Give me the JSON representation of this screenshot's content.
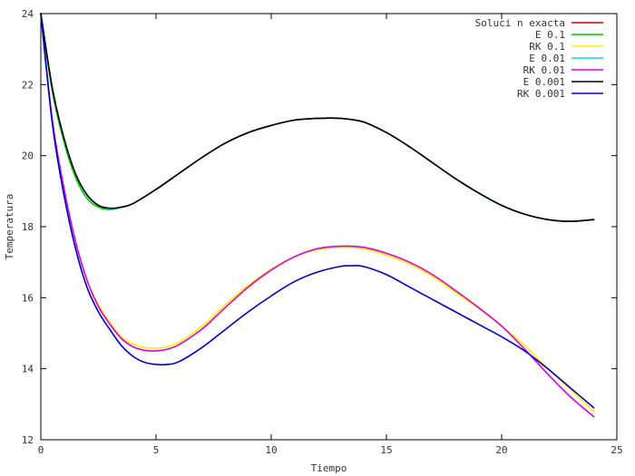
{
  "chart_data": {
    "type": "line",
    "title": "",
    "xlabel": "Tiempo",
    "ylabel": "Temperatura",
    "xlim": [
      0,
      25
    ],
    "ylim": [
      12,
      24
    ],
    "xticks": [
      0,
      5,
      10,
      15,
      20,
      25
    ],
    "yticks": [
      12,
      14,
      16,
      18,
      20,
      22,
      24
    ],
    "grid": false,
    "legend_position": "top-right",
    "series": [
      {
        "name": "Soluci n exacta",
        "color": "#cc0000",
        "x": [
          0,
          0.5,
          1,
          1.5,
          2,
          2.5,
          3,
          3.5,
          4,
          5,
          6,
          7,
          8,
          9,
          10,
          11,
          12,
          13,
          14,
          15,
          16,
          17,
          18,
          19,
          20,
          21,
          22,
          23,
          24
        ],
        "y": [
          24.0,
          21.9,
          20.5,
          19.5,
          18.9,
          18.6,
          18.5,
          18.55,
          18.65,
          19.05,
          19.5,
          19.95,
          20.35,
          20.65,
          20.85,
          21.0,
          21.05,
          21.05,
          20.95,
          20.65,
          20.25,
          19.8,
          19.35,
          18.95,
          18.6,
          18.35,
          18.2,
          18.15,
          18.2
        ]
      },
      {
        "name": "E 0.1",
        "color": "#00cc00",
        "x": [
          0,
          0.5,
          1,
          1.5,
          2,
          2.5,
          3,
          3.5,
          4,
          5,
          6,
          7,
          8,
          9,
          10,
          11,
          12,
          13,
          14,
          15,
          16,
          17,
          18,
          19,
          20,
          21,
          22,
          23,
          24
        ],
        "y": [
          24.0,
          21.8,
          20.4,
          19.4,
          18.8,
          18.55,
          18.48,
          18.55,
          18.65,
          19.05,
          19.5,
          19.95,
          20.35,
          20.65,
          20.85,
          21.0,
          21.05,
          21.05,
          20.95,
          20.65,
          20.25,
          19.8,
          19.35,
          18.95,
          18.6,
          18.35,
          18.2,
          18.15,
          18.2
        ]
      },
      {
        "name": "RK 0.1",
        "color": "#ffee00",
        "x": [
          0,
          0.5,
          1,
          1.5,
          2,
          2.5,
          3,
          3.5,
          4,
          4.5,
          5,
          5.5,
          6,
          7,
          8,
          9,
          10,
          11,
          12,
          13,
          14,
          15,
          16,
          17,
          18,
          19,
          20,
          21,
          22,
          23,
          24
        ],
        "y": [
          24.0,
          21.0,
          19.1,
          17.6,
          16.5,
          15.8,
          15.3,
          14.9,
          14.7,
          14.6,
          14.58,
          14.62,
          14.75,
          15.2,
          15.8,
          16.35,
          16.8,
          17.15,
          17.35,
          17.42,
          17.38,
          17.2,
          16.95,
          16.6,
          16.15,
          15.7,
          15.2,
          14.65,
          14.0,
          13.4,
          12.8
        ]
      },
      {
        "name": "E 0.01",
        "color": "#00dddd",
        "x": [
          0,
          0.5,
          1,
          1.5,
          2,
          2.5,
          3,
          3.5,
          4,
          5,
          6,
          7,
          8,
          9,
          10,
          11,
          12,
          13,
          14,
          15,
          16,
          17,
          18,
          19,
          20,
          21,
          22,
          23,
          24
        ],
        "y": [
          24.0,
          21.9,
          20.5,
          19.5,
          18.9,
          18.6,
          18.5,
          18.55,
          18.65,
          19.05,
          19.5,
          19.95,
          20.35,
          20.65,
          20.85,
          21.0,
          21.05,
          21.05,
          20.95,
          20.65,
          20.25,
          19.8,
          19.35,
          18.95,
          18.6,
          18.35,
          18.2,
          18.15,
          18.2
        ]
      },
      {
        "name": "RK 0.01",
        "color": "#dd00dd",
        "x": [
          0,
          0.5,
          1,
          1.5,
          2,
          2.5,
          3,
          3.5,
          4,
          4.5,
          5,
          5.5,
          6,
          7,
          8,
          9,
          10,
          11,
          12,
          13,
          14,
          15,
          16,
          17,
          18,
          19,
          20,
          21,
          22,
          23,
          24
        ],
        "y": [
          24.0,
          21.0,
          19.1,
          17.6,
          16.5,
          15.75,
          15.25,
          14.85,
          14.62,
          14.52,
          14.5,
          14.55,
          14.68,
          15.12,
          15.72,
          16.3,
          16.78,
          17.15,
          17.38,
          17.45,
          17.42,
          17.25,
          17.0,
          16.65,
          16.2,
          15.72,
          15.2,
          14.55,
          13.85,
          13.2,
          12.65
        ]
      },
      {
        "name": "E 0.001",
        "color": "#000000",
        "x": [
          0,
          0.5,
          1,
          1.5,
          2,
          2.5,
          3,
          3.5,
          4,
          5,
          6,
          7,
          8,
          9,
          10,
          11,
          12,
          13,
          14,
          15,
          16,
          17,
          18,
          19,
          20,
          21,
          22,
          23,
          24
        ],
        "y": [
          24.0,
          21.9,
          20.5,
          19.5,
          18.9,
          18.6,
          18.52,
          18.55,
          18.65,
          19.05,
          19.5,
          19.95,
          20.35,
          20.65,
          20.85,
          21.0,
          21.05,
          21.05,
          20.95,
          20.65,
          20.25,
          19.8,
          19.35,
          18.95,
          18.6,
          18.35,
          18.2,
          18.15,
          18.2
        ]
      },
      {
        "name": "RK 0.001",
        "color": "#0000cc",
        "x": [
          0,
          0.5,
          1,
          1.5,
          2,
          2.5,
          3,
          3.5,
          4,
          4.5,
          5,
          5.5,
          6,
          7,
          8,
          9,
          10,
          11,
          12,
          13,
          13.5,
          14,
          15,
          16,
          17,
          18,
          19,
          20,
          21,
          22,
          23,
          24
        ],
        "y": [
          24.0,
          20.9,
          18.9,
          17.4,
          16.3,
          15.6,
          15.1,
          14.65,
          14.35,
          14.18,
          14.12,
          14.12,
          14.2,
          14.6,
          15.1,
          15.6,
          16.05,
          16.45,
          16.72,
          16.88,
          16.9,
          16.88,
          16.65,
          16.3,
          15.95,
          15.6,
          15.25,
          14.9,
          14.5,
          14.0,
          13.45,
          12.9
        ]
      }
    ]
  }
}
